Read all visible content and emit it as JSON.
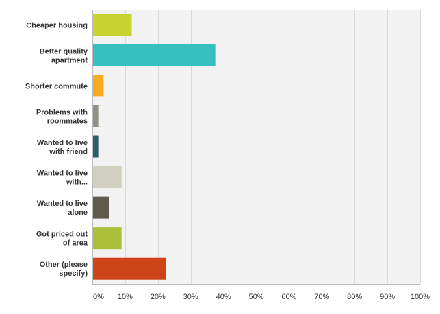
{
  "chart_data": {
    "type": "bar",
    "orientation": "horizontal",
    "categories": [
      [
        "Cheaper housing"
      ],
      [
        "Better quality",
        "apartment"
      ],
      [
        "Shorter commute"
      ],
      [
        "Problems with",
        "roommates"
      ],
      [
        "Wanted to live",
        "with friend"
      ],
      [
        "Wanted to live",
        "with..."
      ],
      [
        "Wanted to live",
        "alone"
      ],
      [
        "Got priced out",
        "of area"
      ],
      [
        "Other (please",
        "specify)"
      ]
    ],
    "values": [
      11.8,
      37.3,
      3.2,
      1.6,
      1.6,
      8.7,
      4.8,
      8.7,
      22.2
    ],
    "colors": [
      "#c7d42f",
      "#35c0bf",
      "#f7ab24",
      "#8f9186",
      "#2e5e69",
      "#d1d0c0",
      "#5e5b4c",
      "#abbf3a",
      "#cd4418"
    ],
    "xlim": [
      0,
      100
    ],
    "xticks": [
      0,
      10,
      20,
      30,
      40,
      50,
      60,
      70,
      80,
      90,
      100
    ],
    "tick_format": "%",
    "grid": true,
    "legend": false
  }
}
